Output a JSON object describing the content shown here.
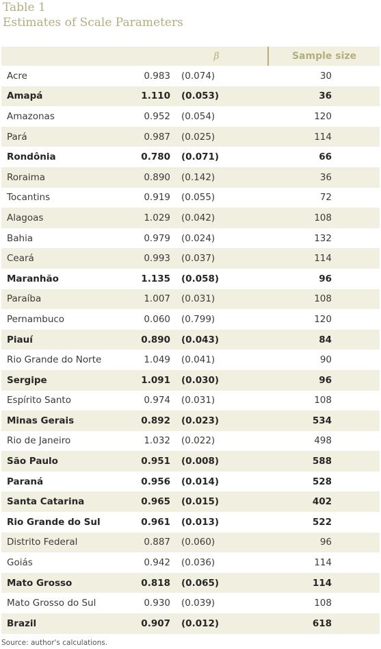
{
  "title": {
    "line1": "Table 1",
    "line2": "Estimates of Scale Parameters"
  },
  "header": {
    "beta": "β",
    "sample_size": "Sample size"
  },
  "rows": [
    {
      "name": "Acre",
      "beta": "0.983",
      "se": "(0.074)",
      "n": "30",
      "bold": false
    },
    {
      "name": "Amapá",
      "beta": "1.110",
      "se": "(0.053)",
      "n": "36",
      "bold": true
    },
    {
      "name": "Amazonas",
      "beta": "0.952",
      "se": "(0.054)",
      "n": "120",
      "bold": false
    },
    {
      "name": "Pará",
      "beta": "0.987",
      "se": "(0.025)",
      "n": "114",
      "bold": false
    },
    {
      "name": "Rondônia",
      "beta": "0.780",
      "se": "(0.071)",
      "n": "66",
      "bold": true
    },
    {
      "name": "Roraima",
      "beta": "0.890",
      "se": "(0.142)",
      "n": "36",
      "bold": false
    },
    {
      "name": "Tocantins",
      "beta": "0.919",
      "se": "(0.055)",
      "n": "72",
      "bold": false
    },
    {
      "name": "Alagoas",
      "beta": "1.029",
      "se": "(0.042)",
      "n": "108",
      "bold": false
    },
    {
      "name": "Bahia",
      "beta": "0.979",
      "se": "(0.024)",
      "n": "132",
      "bold": false
    },
    {
      "name": "Ceará",
      "beta": "0.993",
      "se": "(0.037)",
      "n": "114",
      "bold": false
    },
    {
      "name": "Maranhão",
      "beta": "1.135",
      "se": "(0.058)",
      "n": "96",
      "bold": true
    },
    {
      "name": "Paraíba",
      "beta": "1.007",
      "se": "(0.031)",
      "n": "108",
      "bold": false
    },
    {
      "name": "Pernambuco",
      "beta": "0.060",
      "se": "(0.799)",
      "n": "120",
      "bold": false
    },
    {
      "name": "Piauí",
      "beta": "0.890",
      "se": "(0.043)",
      "n": "84",
      "bold": true
    },
    {
      "name": "Rio Grande do Norte",
      "beta": "1.049",
      "se": "(0.041)",
      "n": "90",
      "bold": false
    },
    {
      "name": "Sergipe",
      "beta": "1.091",
      "se": "(0.030)",
      "n": "96",
      "bold": true
    },
    {
      "name": "Espírito Santo",
      "beta": "0.974",
      "se": "(0.031)",
      "n": "108",
      "bold": false
    },
    {
      "name": "Minas Gerais",
      "beta": "0.892",
      "se": "(0.023)",
      "n": "534",
      "bold": true
    },
    {
      "name": "Rio de Janeiro",
      "beta": "1.032",
      "se": "(0.022)",
      "n": "498",
      "bold": false
    },
    {
      "name": "São Paulo",
      "beta": "0.951",
      "se": "(0.008)",
      "n": "588",
      "bold": true
    },
    {
      "name": "Paraná",
      "beta": "0.956",
      "se": "(0.014)",
      "n": "528",
      "bold": true
    },
    {
      "name": "Santa Catarina",
      "beta": "0.965",
      "se": "(0.015)",
      "n": "402",
      "bold": true
    },
    {
      "name": "Rio Grande do Sul",
      "beta": "0.961",
      "se": "(0.013)",
      "n": "522",
      "bold": true
    },
    {
      "name": "Distrito Federal",
      "beta": "0.887",
      "se": "(0.060)",
      "n": "96",
      "bold": false
    },
    {
      "name": "Goiás",
      "beta": "0.942",
      "se": "(0.036)",
      "n": "114",
      "bold": false
    },
    {
      "name": "Mato Grosso",
      "beta": "0.818",
      "se": "(0.065)",
      "n": "114",
      "bold": true
    },
    {
      "name": "Mato Grosso do Sul",
      "beta": "0.930",
      "se": "(0.039)",
      "n": "108",
      "bold": false
    },
    {
      "name": "Brazil",
      "beta": "0.907",
      "se": "(0.012)",
      "n": "618",
      "bold": true
    }
  ],
  "source": "Source: author's calculations.",
  "colors": {
    "accent": "#b5ad7c",
    "stripe": "#f1efdf"
  }
}
